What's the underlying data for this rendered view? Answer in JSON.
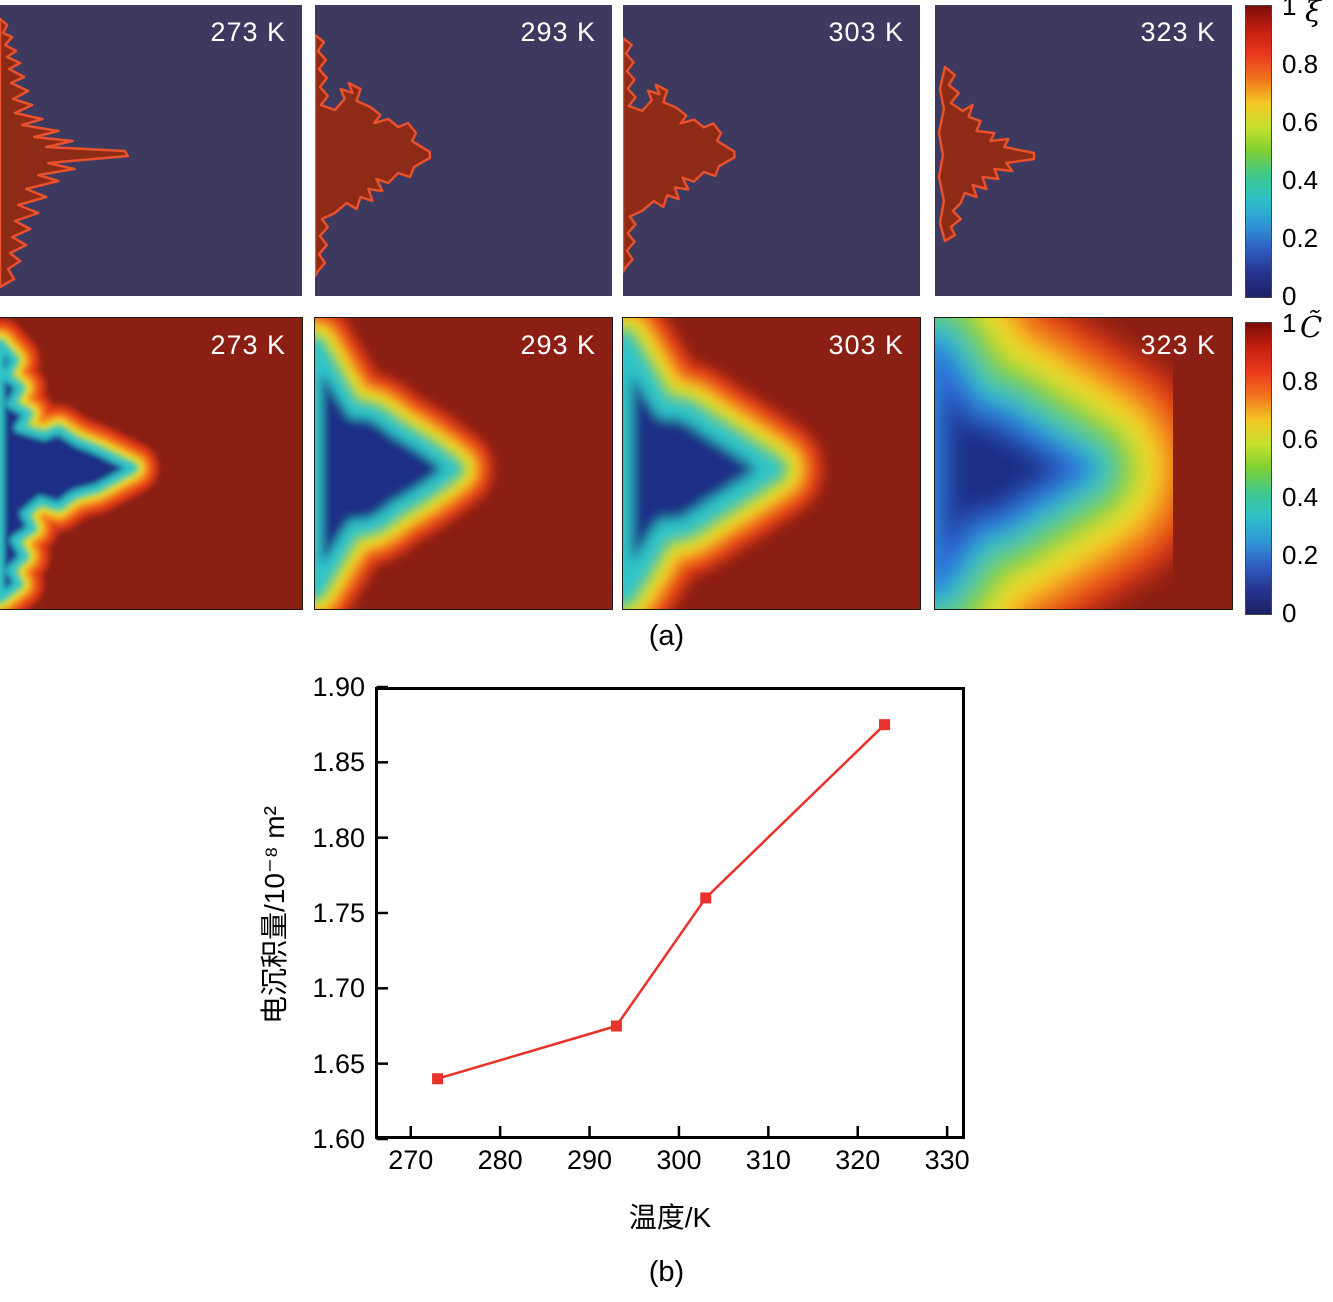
{
  "panel_a": {
    "caption": "(a)",
    "rows": [
      {
        "symbol": "ξ",
        "labels": [
          "273 K",
          "293 K",
          "303 K",
          "323 K"
        ],
        "colorbar_ticks": [
          "1",
          "0.8",
          "0.6",
          "0.4",
          "0.2",
          "0"
        ]
      },
      {
        "symbol": "C̃",
        "labels": [
          "273 K",
          "293 K",
          "303 K",
          "323 K"
        ],
        "colorbar_ticks": [
          "1",
          "0.8",
          "0.6",
          "0.4",
          "0.2",
          "0"
        ]
      }
    ]
  },
  "panel_b": {
    "caption": "(b)"
  },
  "chart_data": [
    {
      "type": "heatmap",
      "panels": [
        "273 K",
        "293 K",
        "303 K",
        "323 K"
      ],
      "colorbar_label": "ξ",
      "colorbar_ticks": [
        1,
        0.8,
        0.6,
        0.4,
        0.2,
        0
      ],
      "range": [
        0,
        1
      ],
      "colormap": [
        "#7b0d09",
        "#c41f10",
        "#e8391b",
        "#f1741f",
        "#f3c623",
        "#c6e12e",
        "#7ccf35",
        "#3fc98c",
        "#2fbfc9",
        "#2f96d6",
        "#2f5fc2",
        "#25348f",
        "#1b2166"
      ]
    },
    {
      "type": "heatmap",
      "panels": [
        "273 K",
        "293 K",
        "303 K",
        "323 K"
      ],
      "colorbar_label": "C̃",
      "colorbar_ticks": [
        1,
        0.8,
        0.6,
        0.4,
        0.2,
        0
      ],
      "range": [
        0,
        1
      ],
      "colormap": [
        "#7b0d09",
        "#c41f10",
        "#e8391b",
        "#f1741f",
        "#f3c623",
        "#c6e12e",
        "#7ccf35",
        "#3fc98c",
        "#2fbfc9",
        "#2f96d6",
        "#2f5fc2",
        "#25348f",
        "#1b2166"
      ]
    },
    {
      "type": "line",
      "x": [
        273,
        293,
        303,
        323
      ],
      "y": [
        1.64,
        1.675,
        1.76,
        1.875
      ],
      "xlabel": "温度/K",
      "ylabel": "电沉积量/10⁻⁸ m²",
      "xlim": [
        266,
        332
      ],
      "ylim": [
        1.6,
        1.9
      ],
      "xticks": [
        "270",
        "280",
        "290",
        "300",
        "310",
        "320",
        "330"
      ],
      "yticks": [
        "1.60",
        "1.65",
        "1.70",
        "1.75",
        "1.80",
        "1.85",
        "1.90"
      ],
      "line_color": "#e8332a",
      "marker": "square",
      "legend": null,
      "grid": false
    }
  ]
}
